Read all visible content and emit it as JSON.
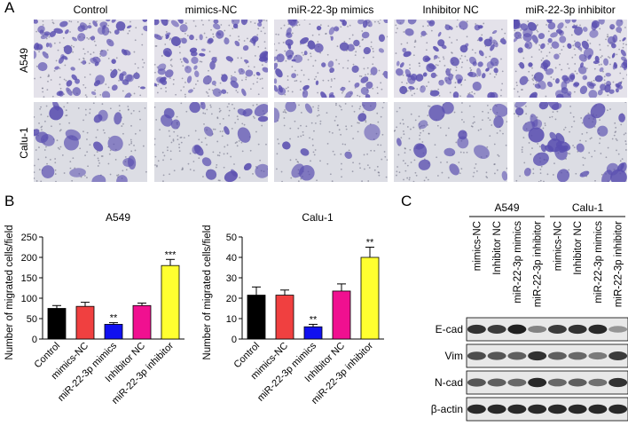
{
  "figure": {
    "panel_labels": [
      "A",
      "B",
      "C"
    ],
    "panel_a": {
      "columns": [
        "Control",
        "mimics-NC",
        "miR-22-3p mimics",
        "Inhibitor NC",
        "miR-22-3p inhibitor"
      ],
      "rows": [
        "A549",
        "Calu-1"
      ],
      "cell_density": [
        [
          1.0,
          1.0,
          0.85,
          1.0,
          1.5
        ],
        [
          0.8,
          0.9,
          0.5,
          0.7,
          1.4
        ]
      ],
      "stain_color": "#5a4fb0"
    },
    "panel_c": {
      "groups": [
        "A549",
        "Calu-1"
      ],
      "lanes": [
        "mimics-NC",
        "Inhibitor NC",
        "miR-22-3p mimics",
        "miR-22-3p inhibitor",
        "mimics-NC",
        "Inhibitor NC",
        "miR-22-3p mimics",
        "miR-22-3p inhibitor"
      ],
      "blots": [
        {
          "label": "E-cad",
          "intensity": [
            0.85,
            0.8,
            0.95,
            0.4,
            0.8,
            0.85,
            0.9,
            0.3
          ]
        },
        {
          "label": "Vim",
          "intensity": [
            0.7,
            0.65,
            0.6,
            0.85,
            0.6,
            0.55,
            0.45,
            0.8
          ]
        },
        {
          "label": "N-cad",
          "intensity": [
            0.65,
            0.6,
            0.55,
            0.9,
            0.55,
            0.6,
            0.5,
            0.85
          ]
        },
        {
          "label": "β-actin",
          "intensity": [
            0.9,
            0.9,
            0.9,
            0.9,
            0.9,
            0.9,
            0.9,
            0.9
          ]
        }
      ]
    }
  },
  "chart_data": [
    {
      "type": "bar",
      "title": "A549",
      "ylabel": "Number of migrated cells/field",
      "xlabel": "",
      "categories": [
        "Control",
        "mimics-NC",
        "miR-22-3p mimics",
        "Inhibitor NC",
        "miR-22-3p inhibitor"
      ],
      "values": [
        75,
        80,
        36,
        82,
        180
      ],
      "errors": [
        7,
        10,
        4,
        6,
        15
      ],
      "significance": [
        "",
        "",
        "**",
        "",
        "***"
      ],
      "colors": [
        "#000000",
        "#f04040",
        "#1010f0",
        "#f01090",
        "#ffff30"
      ],
      "ylim": [
        0,
        250
      ],
      "yticks": [
        0,
        50,
        100,
        150,
        200,
        250
      ],
      "grid": false
    },
    {
      "type": "bar",
      "title": "Calu-1",
      "ylabel": "Number of migrated cells/field",
      "xlabel": "",
      "categories": [
        "Control",
        "mimics-NC",
        "miR-22-3p mimics",
        "Inhibitor NC",
        "miR-22-3p inhibitor"
      ],
      "values": [
        21.5,
        21.5,
        6,
        23.5,
        40
      ],
      "errors": [
        4,
        2.5,
        1.2,
        3.5,
        5
      ],
      "significance": [
        "",
        "",
        "**",
        "",
        "**"
      ],
      "colors": [
        "#000000",
        "#f04040",
        "#1010f0",
        "#f01090",
        "#ffff30"
      ],
      "ylim": [
        0,
        50
      ],
      "yticks": [
        0,
        10,
        20,
        30,
        40,
        50
      ],
      "grid": false
    }
  ]
}
